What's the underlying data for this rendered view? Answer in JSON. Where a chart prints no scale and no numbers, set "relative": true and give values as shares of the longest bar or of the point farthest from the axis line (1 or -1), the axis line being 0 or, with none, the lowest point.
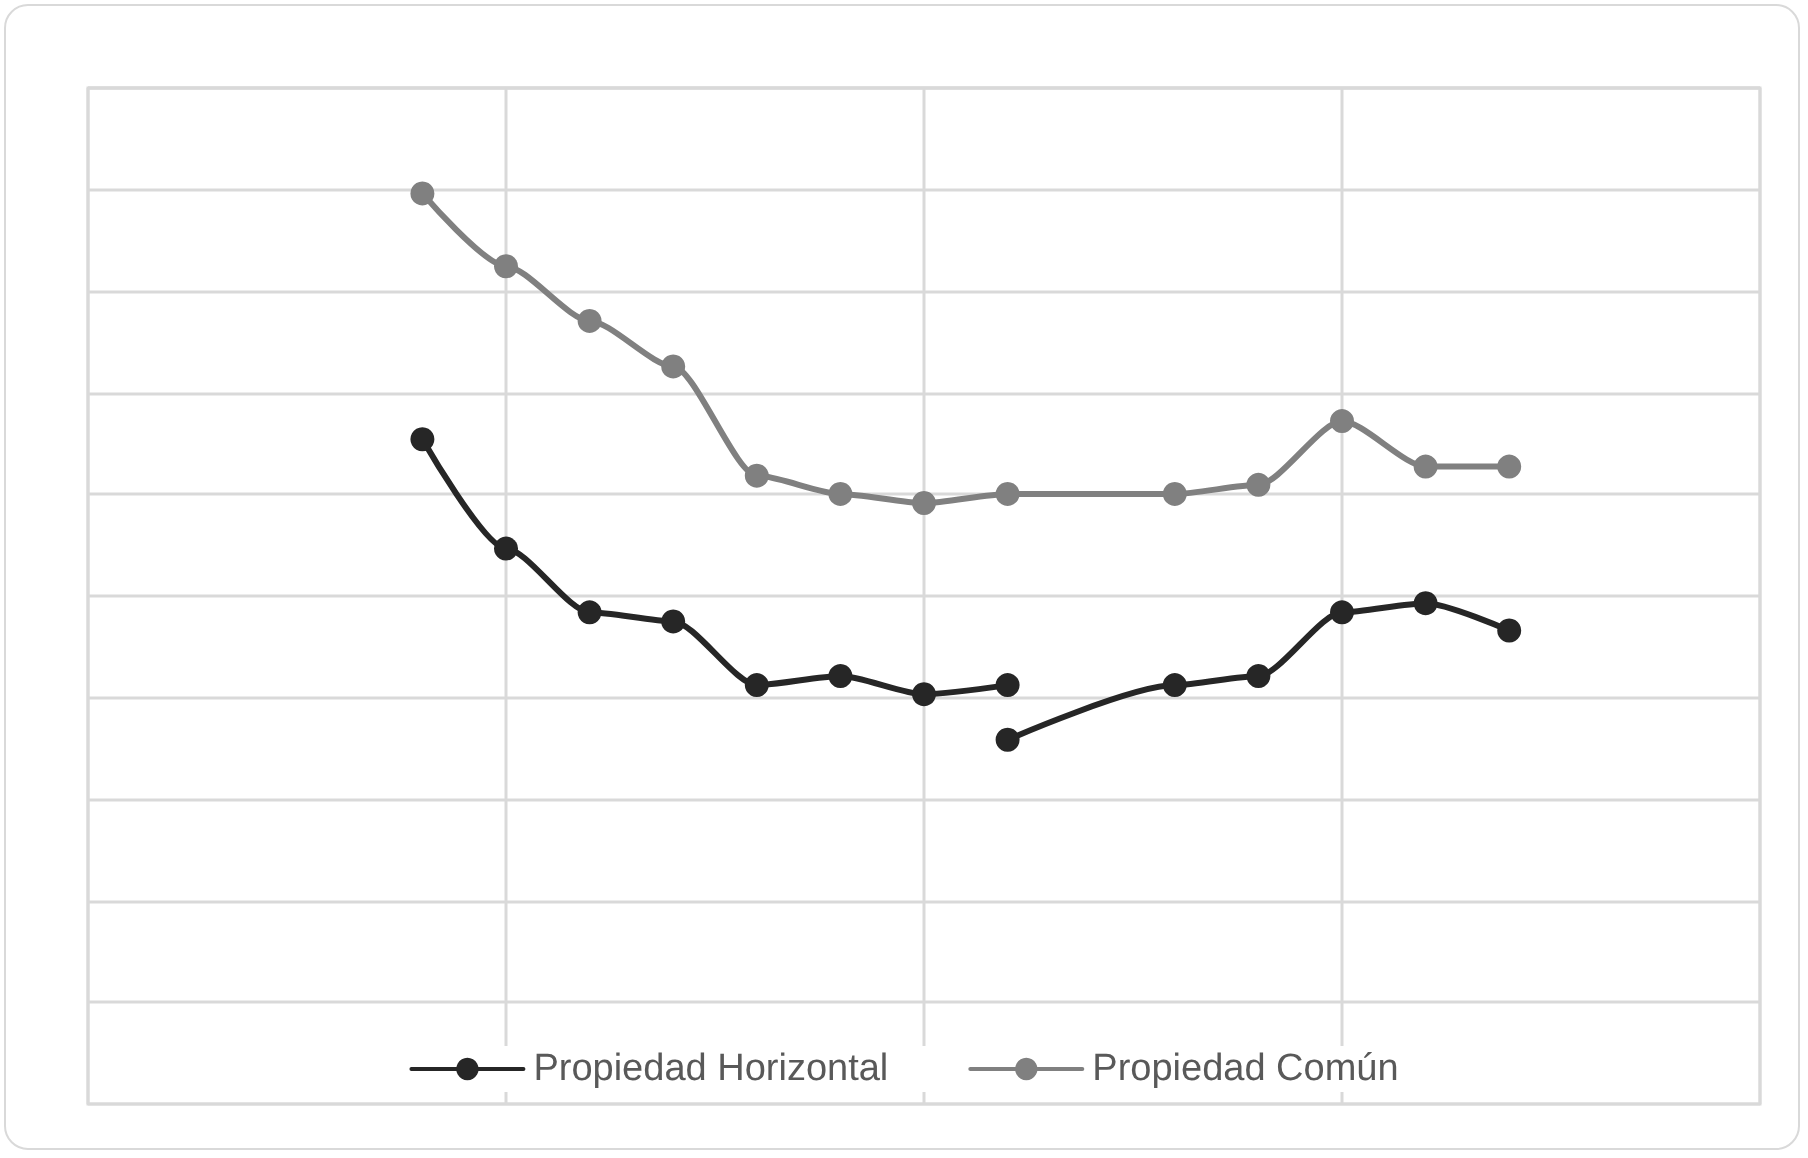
{
  "chart_data": {
    "type": "line",
    "relative": true,
    "categories": [
      null,
      null,
      null,
      null,
      null,
      null,
      null,
      null,
      null,
      null,
      null,
      null,
      null,
      null,
      null,
      null,
      null,
      null,
      null,
      null,
      null
    ],
    "series": [
      {
        "name": "Propiedad Horizontal",
        "color": "#262626",
        "values": [
          null,
          null,
          null,
          null,
          0.73,
          0.61,
          0.54,
          0.53,
          0.46,
          0.47,
          0.45,
          0.46,
          null,
          null,
          null,
          null,
          null,
          null,
          null,
          null,
          null
        ]
      },
      {
        "name": "Propiedad Común",
        "color": "#808080",
        "values": [
          null,
          null,
          null,
          null,
          1.0,
          0.92,
          0.86,
          0.81,
          0.69,
          0.67,
          0.66,
          0.67,
          null,
          0.67,
          0.68,
          0.75,
          0.7,
          0.7,
          null,
          null,
          null
        ]
      },
      {
        "color": "#262626",
        "values": [
          null,
          null,
          null,
          null,
          null,
          null,
          null,
          null,
          null,
          null,
          null,
          0.4,
          null,
          0.46,
          0.47,
          0.54,
          0.55,
          0.52,
          null,
          null,
          null
        ]
      }
    ],
    "grid": true,
    "legend": "bottom",
    "marker": "circle",
    "line_style": "solid"
  }
}
